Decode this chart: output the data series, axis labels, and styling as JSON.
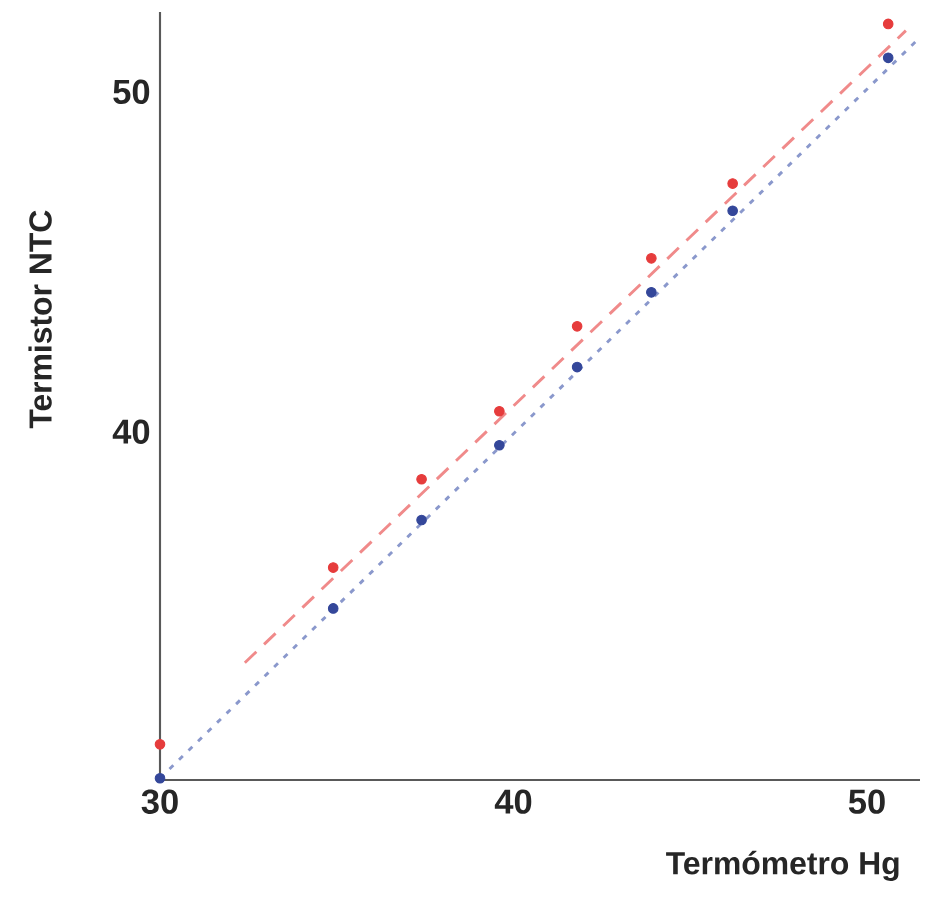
{
  "chart_data": {
    "type": "scatter",
    "xlabel": "Termómetro Hg",
    "ylabel": "Termistor NTC",
    "xlim": [
      30,
      51.5
    ],
    "ylim": [
      29.75,
      52.35
    ],
    "xticks": [
      30,
      40,
      50
    ],
    "yticks": [
      40,
      50
    ],
    "grid": false,
    "series": [
      {
        "marker": "circle",
        "color": "#e63c3c",
        "x": [
          30,
          34.9,
          37.4,
          39.6,
          41.8,
          43.9,
          46.2,
          50.6
        ],
        "values": [
          30.8,
          36.0,
          38.6,
          40.6,
          43.1,
          45.1,
          47.3,
          52.0
        ]
      },
      {
        "marker": "circle",
        "color": "#34479a",
        "x": [
          30,
          34.9,
          37.4,
          39.6,
          41.8,
          43.9,
          46.2,
          50.6
        ],
        "values": [
          29.8,
          34.8,
          37.4,
          39.6,
          41.9,
          44.1,
          46.5,
          51.0
        ]
      },
      {
        "type": "line",
        "marker": "none",
        "line_style": "dashed",
        "color": "#f08a8a",
        "x": [
          32.4,
          51.1
        ],
        "values": [
          33.2,
          51.8
        ]
      },
      {
        "type": "line",
        "marker": "none",
        "line_style": "dotted",
        "color": "#8a98cc",
        "x": [
          30,
          51.4
        ],
        "values": [
          29.8,
          51.5
        ]
      }
    ]
  }
}
